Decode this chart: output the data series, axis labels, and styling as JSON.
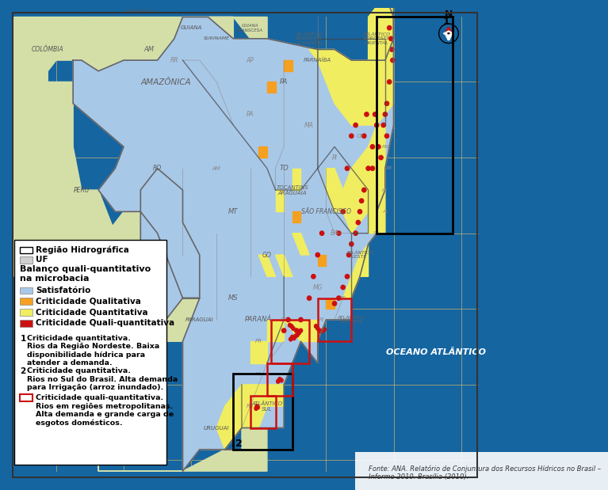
{
  "ocean_color": "#1565a0",
  "neighbor_color": "#d4dfa8",
  "satisfatorio_color": "#a8c8e8",
  "qualitativa_color": "#f5a020",
  "quantitativa_color": "#f0ee60",
  "quali_quantitativa_color": "#cc1010",
  "legend_bg": "#ffffff",
  "grid_color": "#e8c060",
  "grid_alpha": 0.7,
  "legend_title1": "Região Hidrográfica",
  "legend_title2": "UF",
  "legend_section": "Balanço quali-quantitativo\nna microbacia",
  "legend_item1": "Satisfatório",
  "legend_item2": "Criticidade Qualitativa",
  "legend_item3": "Criticidade Quantitativa",
  "legend_item4": "Criticidade Quali-quantitativa",
  "note1_text": "Criticidade quantitativa.\nRios da Região Nordeste. Baixa\ndisponibilidade hídrica para\natender a demanda.",
  "note2_text": "Criticidade quantitativa.\nRios no Sul do Brasil. Alta demanda\npara Irrigação (arroz inundado).",
  "note3_text": "Criticidade quali-quantitativa.\nRios em regiões metropolitanas.\nAlta demanda e grande carga de\nesgotos domésticos.",
  "fonte_text": "Fonte: ANA. Relatório de Conjuntura dos Recursos Hídricos no Brasil –\nInforme 2010. Brasília (2010).",
  "north_color": "#cc1010",
  "ocean_label": "OCEANO ATLÂNTICO"
}
